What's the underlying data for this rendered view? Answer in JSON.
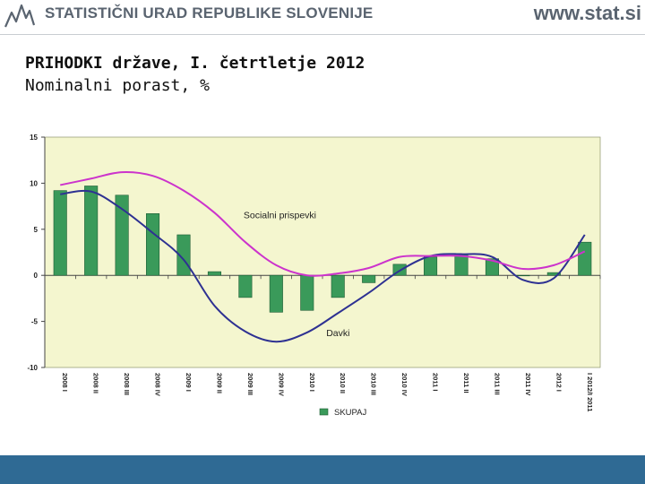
{
  "header": {
    "org_name": "STATISTIČNI URAD REPUBLIKE SLOVENIJE",
    "site": "www.stat.si"
  },
  "slide": {
    "title": "PRIHODKI države, I. četrtletje 2012",
    "subtitle": "Nominalni porast, %"
  },
  "colors": {
    "plot_bg": "#f4f6cf",
    "bar": "#3a9a5a",
    "bar_edge": "#1e5c34",
    "line_davki": "#2e3192",
    "line_socialni": "#cc33cc",
    "footer": "#2f6a94"
  },
  "chart_data": {
    "type": "bar",
    "title": "",
    "xlabel": "",
    "ylabel": "",
    "ylim": [
      -10,
      15
    ],
    "yticks": [
      15,
      10,
      5,
      0,
      -5,
      -10
    ],
    "grid": false,
    "categories": [
      "2008 I",
      "2008 II",
      "2008 III",
      "2008 IV",
      "2009 I",
      "2009 II",
      "2009 III",
      "2009 IV",
      "2010 I",
      "2010 II",
      "2010 III",
      "2010 IV",
      "2011 I",
      "2011 II",
      "2011 III",
      "2011 IV",
      "2012 I",
      "I 2012/I 2011"
    ],
    "series": [
      {
        "name": "SKUPAJ",
        "kind": "bar",
        "values": [
          9.2,
          9.7,
          8.7,
          6.7,
          4.4,
          0.4,
          -2.4,
          -4.0,
          -3.8,
          -2.4,
          -0.8,
          1.2,
          2.0,
          2.3,
          1.8,
          0.0,
          0.3,
          3.6
        ]
      },
      {
        "name": "Davki",
        "kind": "line",
        "values": [
          8.8,
          9.1,
          7.2,
          4.6,
          1.7,
          -3.3,
          -6.1,
          -7.2,
          -6.2,
          -4.1,
          -1.9,
          0.5,
          2.1,
          2.3,
          2.0,
          -0.5,
          -0.3,
          4.4
        ]
      },
      {
        "name": "Socialni prispevki",
        "kind": "line",
        "values": [
          9.8,
          10.5,
          11.2,
          10.8,
          9.2,
          6.8,
          3.6,
          1.1,
          0.0,
          0.2,
          0.8,
          2.0,
          2.1,
          2.1,
          1.6,
          0.7,
          1.1,
          2.6
        ]
      }
    ],
    "annotations": [
      {
        "text": "Socialni prispevki",
        "series": "Socialni prispevki"
      },
      {
        "text": "Davki",
        "series": "Davki"
      }
    ],
    "legend": {
      "placement": "bottom",
      "entries": [
        "SKUPAJ"
      ]
    }
  }
}
